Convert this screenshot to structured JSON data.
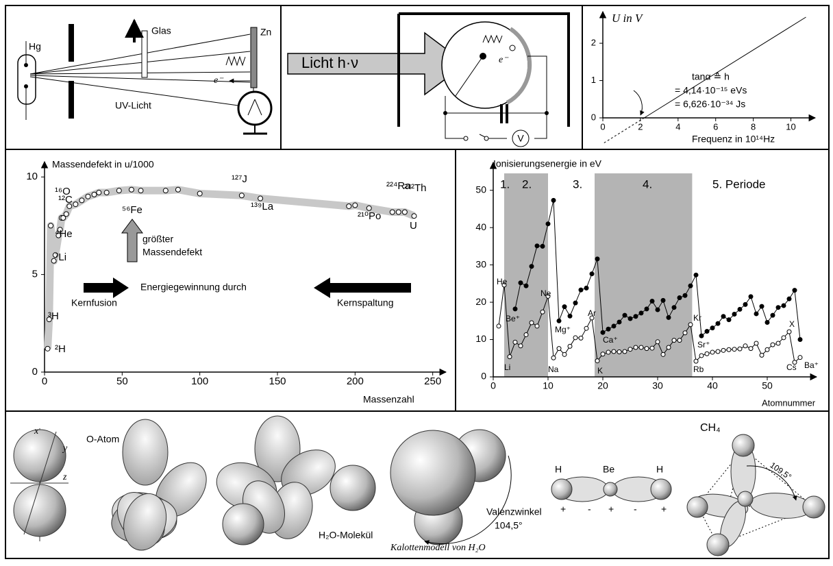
{
  "photoeffect": {
    "source": "Hg",
    "filter": "Glas",
    "plate": "Zn",
    "electron": "e⁻",
    "uv": "UV-Licht"
  },
  "photocell": {
    "light": "Licht h·ν",
    "electron": "e⁻",
    "meter": "V"
  },
  "voltage_chart": {
    "type": "line",
    "y_label": "U in V",
    "x_label": "Frequenz in 10¹⁴Hz",
    "xlim": [
      0,
      11
    ],
    "ylim": [
      0,
      2.7
    ],
    "xticks": [
      0,
      2,
      4,
      6,
      8,
      10
    ],
    "yticks": [
      0,
      1,
      2
    ],
    "x": [
      2.2,
      10.8
    ],
    "values": [
      0,
      2.7
    ],
    "color": "#000000",
    "annotations": [
      "tanα ≙ h",
      "= 4,14·10⁻¹⁵ eVs",
      "= 6,626·10⁻³⁴ Js"
    ]
  },
  "mass_chart": {
    "type": "scatter",
    "y_label": "Massendefekt in u/1000",
    "x_label": "Massenzahl",
    "xlim": [
      0,
      255
    ],
    "ylim": [
      0,
      10.5
    ],
    "xticks": [
      0,
      50,
      100,
      150,
      200,
      250
    ],
    "yticks": [
      0,
      5,
      10
    ],
    "x": [
      2,
      3,
      4,
      6,
      7,
      9,
      10,
      11,
      12,
      14,
      16,
      20,
      24,
      28,
      32,
      35,
      40,
      48,
      56,
      62,
      78,
      86,
      100,
      127,
      139,
      196,
      200,
      209,
      224,
      228,
      232,
      238
    ],
    "values": [
      1.2,
      2.7,
      7.5,
      5.7,
      6.0,
      7.0,
      7.3,
      7.9,
      7.9,
      8.1,
      8.5,
      8.6,
      8.8,
      9.0,
      9.1,
      9.2,
      9.2,
      9.3,
      9.35,
      9.3,
      9.3,
      9.35,
      9.15,
      9.05,
      8.9,
      8.5,
      8.55,
      8.4,
      8.2,
      8.2,
      8.2,
      8.0
    ],
    "nuclide_labels": [
      "²H",
      "³H",
      "⁴He",
      "⁷Li",
      "¹²C",
      "¹⁶O",
      "⁵⁶Fe",
      "¹²⁷J",
      "¹³⁹La",
      "²¹⁰Po",
      "²²⁴Ra",
      "²³²Th",
      "U"
    ],
    "annotations": [
      "größter",
      "Massendefekt",
      "Energiegewinnung durch",
      "Kernfusion",
      "Kernspaltung"
    ]
  },
  "ionization_chart": {
    "type": "line",
    "y_label": "Ionisierungsenergie in eV",
    "x_label": "Atomnummer",
    "xlim": [
      0,
      58
    ],
    "ylim": [
      0,
      56
    ],
    "xticks": [
      0,
      10,
      20,
      30,
      40,
      50
    ],
    "yticks": [
      0,
      10,
      20,
      30,
      40,
      50
    ],
    "shaded": [
      [
        2,
        10
      ],
      [
        18.5,
        36.3
      ]
    ],
    "periods": [
      "1.",
      "2.",
      "3.",
      "4.",
      "5. Periode"
    ],
    "x": [
      1,
      2,
      3,
      4,
      5,
      6,
      7,
      8,
      9,
      10,
      11,
      12,
      13,
      14,
      15,
      16,
      17,
      18,
      19,
      20,
      21,
      22,
      23,
      24,
      25,
      26,
      27,
      28,
      29,
      30,
      31,
      32,
      33,
      34,
      35,
      36,
      37,
      38,
      39,
      40,
      41,
      42,
      43,
      44,
      45,
      46,
      47,
      48,
      49,
      50,
      51,
      52,
      53,
      54,
      55,
      56
    ],
    "series": [
      {
        "color": "#ffffff",
        "values": [
          13.6,
          24.6,
          5.4,
          9.3,
          8.3,
          11.3,
          14.5,
          13.6,
          17.4,
          21.6,
          5.1,
          7.6,
          6.0,
          8.2,
          10.5,
          10.4,
          13.0,
          15.8,
          4.3,
          6.1,
          6.6,
          6.8,
          6.7,
          6.8,
          7.4,
          7.9,
          7.9,
          7.6,
          7.7,
          9.4,
          6.0,
          7.9,
          9.8,
          9.8,
          11.8,
          14.0,
          4.2,
          5.7,
          6.2,
          6.6,
          6.8,
          7.1,
          7.3,
          7.4,
          7.5,
          8.3,
          7.6,
          9.0,
          5.8,
          7.3,
          8.6,
          9.0,
          10.5,
          12.1,
          3.9,
          5.2
        ]
      },
      {
        "color": "#000000",
        "values": [
          null,
          null,
          null,
          18.2,
          25.2,
          24.4,
          29.6,
          35.1,
          35.0,
          41.0,
          47.3,
          15.0,
          18.8,
          16.3,
          19.8,
          23.3,
          23.8,
          27.6,
          31.6,
          11.9,
          12.8,
          13.6,
          14.7,
          16.5,
          15.6,
          16.2,
          17.1,
          18.2,
          20.3,
          18.0,
          20.5,
          15.9,
          18.6,
          21.2,
          21.8,
          24.4,
          27.3,
          11.0,
          12.2,
          13.1,
          14.3,
          16.2,
          15.3,
          16.8,
          18.1,
          19.4,
          21.5,
          16.9,
          18.9,
          14.6,
          16.5,
          18.6,
          19.1,
          20.9,
          23.2,
          10.0
        ]
      }
    ],
    "element_labels": [
      "He",
      "Be⁺",
      "Li",
      "Ne",
      "Mg⁺",
      "Na",
      "Ar",
      "Ca⁺",
      "K",
      "Kr",
      "Sr⁺",
      "Rb",
      "X",
      "Ba⁺",
      "Cs"
    ]
  },
  "orbitals": {
    "axes": [
      "x",
      "y",
      "z"
    ],
    "o_atom": "O-Atom",
    "water": "H₂O-Molekül",
    "model": "Kalottenmodell von H₂O",
    "angle_label": "Valenzwinkel",
    "angle": "104,5°",
    "beh2": [
      "H",
      "Be",
      "H"
    ],
    "signs": [
      "+",
      "-",
      "+",
      "-",
      "+"
    ],
    "ch4": "CH₄",
    "ch4_angle": "109,5°"
  }
}
